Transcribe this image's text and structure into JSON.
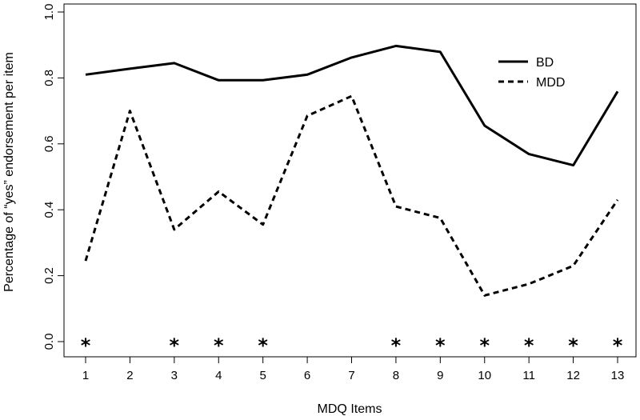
{
  "chart_data": {
    "type": "line",
    "title": "",
    "xlabel": "MDQ Items",
    "ylabel": "Percentage of  “yes” endorsement per item",
    "x": [
      1,
      2,
      3,
      4,
      5,
      6,
      7,
      8,
      9,
      10,
      11,
      12,
      13
    ],
    "xticks": [
      "1",
      "2",
      "3",
      "4",
      "5",
      "6",
      "7",
      "8",
      "9",
      "10",
      "11",
      "12",
      "13"
    ],
    "yticks": [
      "0.0",
      "0.2",
      "0.4",
      "0.6",
      "0.8",
      "1.0"
    ],
    "xlim": [
      0.8,
      13.2
    ],
    "ylim": [
      0,
      1.0
    ],
    "grid": false,
    "legend_position": "top-right",
    "series": [
      {
        "name": "BD",
        "line_style": "solid",
        "color": "#000000",
        "values": [
          0.81,
          0.828,
          0.845,
          0.793,
          0.793,
          0.81,
          0.862,
          0.897,
          0.879,
          0.655,
          0.569,
          0.535,
          0.759
        ]
      },
      {
        "name": "MDD",
        "line_style": "dashed",
        "color": "#000000",
        "values": [
          0.245,
          0.7,
          0.34,
          0.455,
          0.355,
          0.685,
          0.745,
          0.41,
          0.375,
          0.14,
          0.175,
          0.23,
          0.43
        ]
      }
    ],
    "significance": {
      "marker": "*",
      "y": 0.0,
      "items": [
        1,
        3,
        4,
        5,
        8,
        9,
        10,
        11,
        12,
        13
      ]
    }
  }
}
